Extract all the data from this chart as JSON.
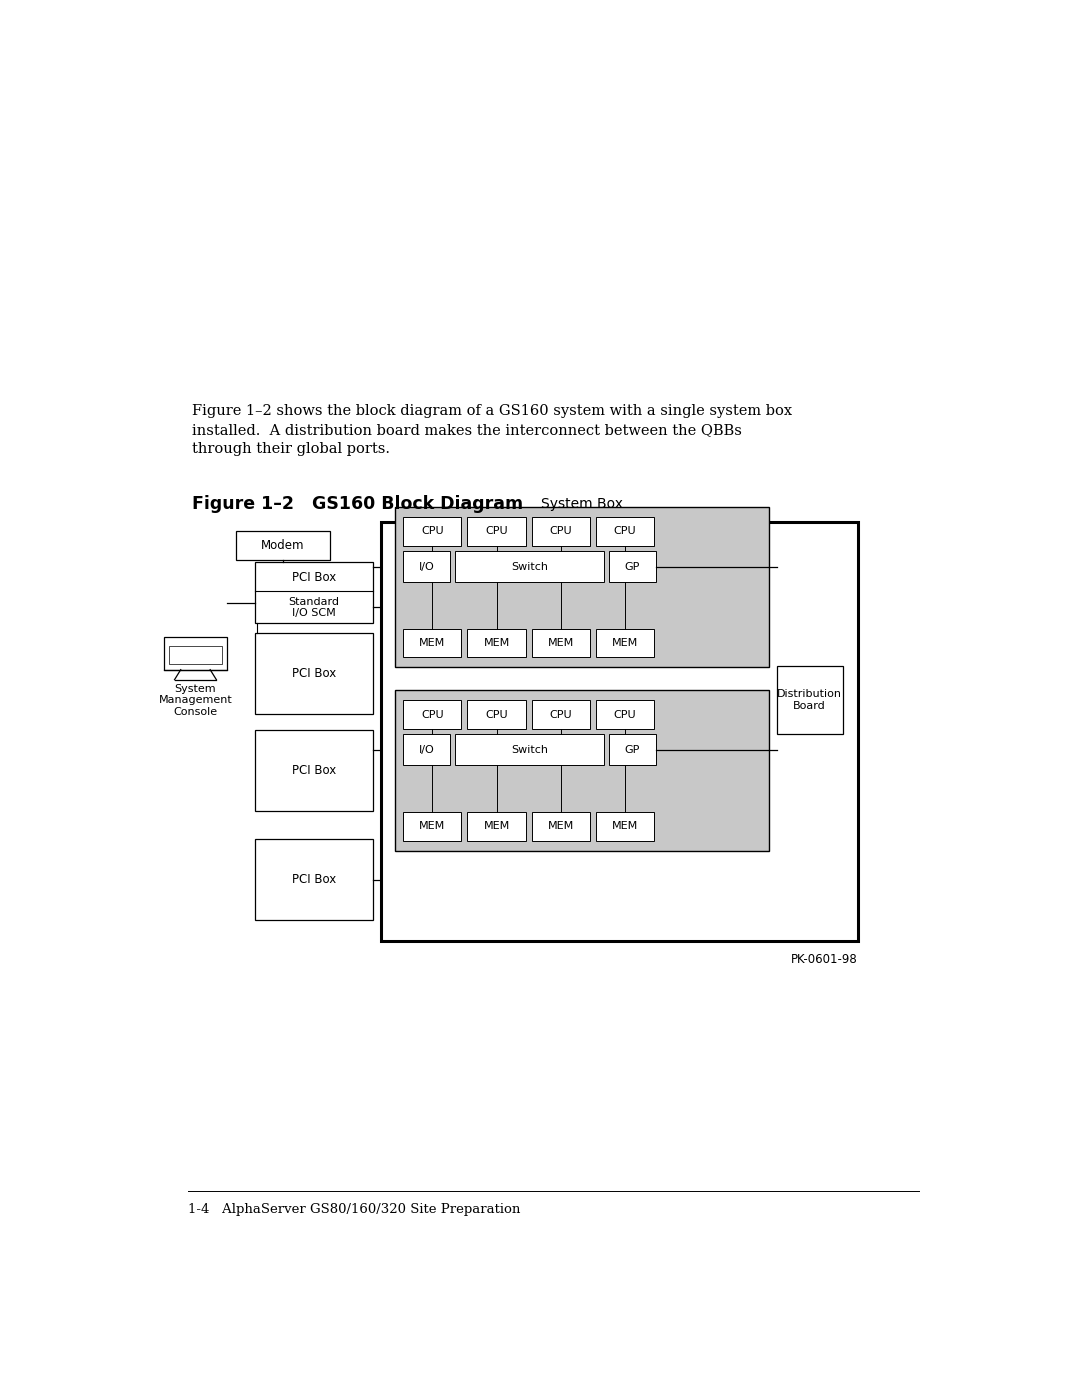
{
  "page_bg": "#ffffff",
  "text_color": "#000000",
  "body_text": "Figure 1–2 shows the block diagram of a GS160 system with a single system box\ninstalled.  A distribution board makes the interconnect between the QBBs\nthrough their global ports.",
  "figure_label": "Figure 1–2   GS160 Block Diagram",
  "footer_text": "1-4   AlphaServer GS80/160/320 Site Preparation",
  "pk_text": "PK-0601-98",
  "gray_fill": "#c8c8c8",
  "white_fill": "#ffffff",
  "box_edge": "#000000",
  "body_fontsize": 10.5,
  "figure_label_fontsize": 12.5
}
